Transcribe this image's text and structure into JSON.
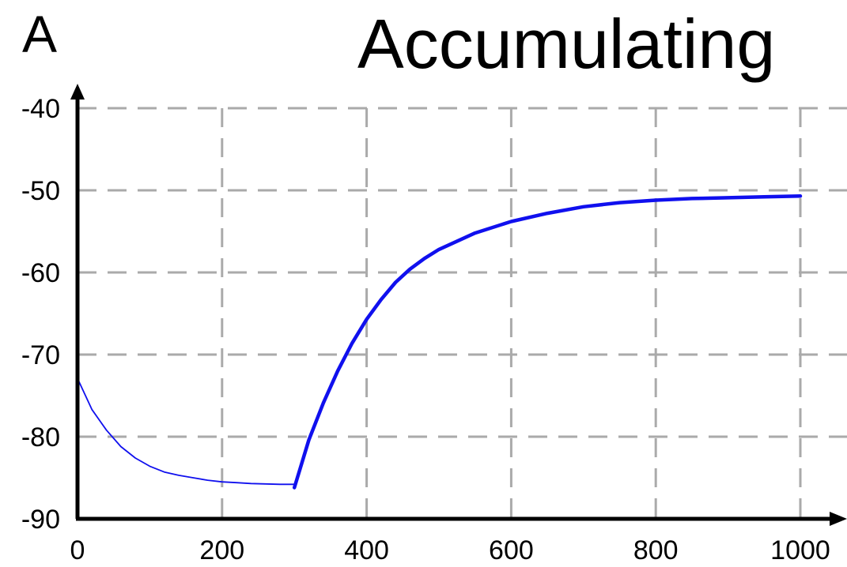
{
  "panel_label": "A",
  "chart_data": {
    "type": "line",
    "title": "Accumulating",
    "xlabel": "",
    "ylabel": "",
    "xlim": [
      0,
      1000
    ],
    "ylim": [
      -90,
      -40
    ],
    "x_ticks": [
      "0",
      "200",
      "400",
      "600",
      "800",
      "1000"
    ],
    "y_ticks": [
      "-40",
      "-50",
      "-60",
      "-70",
      "-80",
      "-90"
    ],
    "grid": true,
    "colors": {
      "line": "#1010ee",
      "grid": "#aaaaaa",
      "axis": "#000000"
    },
    "series": [
      {
        "x": [
          0,
          20,
          40,
          60,
          80,
          100,
          120,
          140,
          160,
          180,
          200,
          220,
          240,
          260,
          280,
          300
        ],
        "y": [
          -72.9,
          -76.7,
          -79.2,
          -81.2,
          -82.6,
          -83.6,
          -84.3,
          -84.7,
          -85.0,
          -85.3,
          -85.5,
          -85.6,
          -85.7,
          -85.75,
          -85.8,
          -85.8
        ]
      },
      {
        "x": [
          300,
          320,
          340,
          360,
          380,
          400,
          420,
          440,
          460,
          480,
          500,
          550,
          600,
          650,
          700,
          750,
          800,
          850,
          900,
          950,
          1000
        ],
        "y": [
          -86.2,
          -80.4,
          -75.9,
          -72.0,
          -68.6,
          -65.7,
          -63.3,
          -61.2,
          -59.6,
          -58.3,
          -57.2,
          -55.2,
          -53.8,
          -52.8,
          -52.0,
          -51.5,
          -51.2,
          -51.0,
          -50.9,
          -50.8,
          -50.7
        ]
      }
    ]
  }
}
